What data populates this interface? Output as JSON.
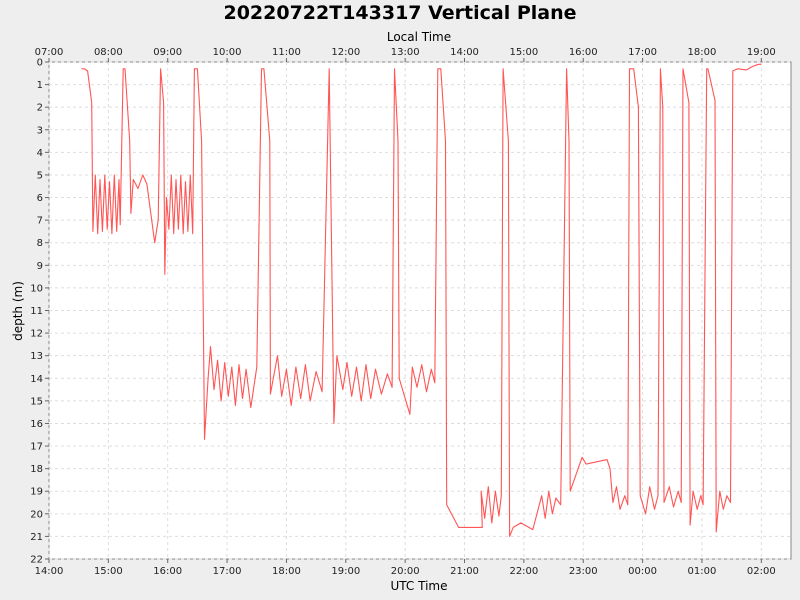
{
  "chart_data": {
    "type": "line",
    "title": "20220722T143317 Vertical Plane",
    "xlabel": "UTC Time",
    "x2label": "Local Time",
    "ylabel": "depth (m)",
    "x_range_hours": [
      14,
      26.5
    ],
    "ylim": [
      0,
      22
    ],
    "y_inverted": true,
    "grid": true,
    "line_color": "#ff5555",
    "x_ticks_utc": [
      "14:00",
      "15:00",
      "16:00",
      "17:00",
      "18:00",
      "19:00",
      "20:00",
      "21:00",
      "22:00",
      "23:00",
      "00:00",
      "01:00",
      "02:00"
    ],
    "x_ticks_local": [
      "07:00",
      "08:00",
      "09:00",
      "10:00",
      "11:00",
      "12:00",
      "13:00",
      "14:00",
      "15:00",
      "16:00",
      "17:00",
      "18:00",
      "19:00"
    ],
    "y_ticks": [
      0,
      1,
      2,
      3,
      4,
      5,
      6,
      7,
      8,
      9,
      10,
      11,
      12,
      13,
      14,
      15,
      16,
      17,
      18,
      19,
      20,
      21,
      22
    ],
    "series": [
      {
        "points": [
          [
            14.55,
            0.3
          ],
          [
            14.6,
            0.3
          ],
          [
            14.65,
            0.4
          ],
          [
            14.72,
            1.8
          ],
          [
            14.74,
            7.5
          ],
          [
            14.78,
            5
          ],
          [
            14.82,
            7.6
          ],
          [
            14.86,
            5.2
          ],
          [
            14.9,
            7.5
          ],
          [
            14.94,
            5
          ],
          [
            14.98,
            7.4
          ],
          [
            15.02,
            5.3
          ],
          [
            15.06,
            7.6
          ],
          [
            15.1,
            5
          ],
          [
            15.14,
            7.5
          ],
          [
            15.18,
            5.2
          ],
          [
            15.2,
            7.2
          ],
          [
            15.25,
            0.3
          ],
          [
            15.28,
            0.3
          ],
          [
            15.36,
            3.5
          ],
          [
            15.38,
            6.7
          ],
          [
            15.42,
            5.2
          ],
          [
            15.5,
            5.6
          ],
          [
            15.58,
            5
          ],
          [
            15.65,
            5.4
          ],
          [
            15.72,
            6.8
          ],
          [
            15.78,
            8
          ],
          [
            15.84,
            7
          ],
          [
            15.88,
            0.3
          ],
          [
            15.93,
            1.8
          ],
          [
            15.95,
            9.4
          ],
          [
            15.98,
            6
          ],
          [
            16.02,
            7.4
          ],
          [
            16.06,
            5
          ],
          [
            16.1,
            7.6
          ],
          [
            16.14,
            5.2
          ],
          [
            16.18,
            7.4
          ],
          [
            16.22,
            5
          ],
          [
            16.26,
            7.6
          ],
          [
            16.3,
            5.3
          ],
          [
            16.34,
            7.5
          ],
          [
            16.38,
            5
          ],
          [
            16.42,
            7.6
          ],
          [
            16.45,
            0.3
          ],
          [
            16.5,
            0.3
          ],
          [
            16.57,
            3.5
          ],
          [
            16.62,
            16.7
          ],
          [
            16.68,
            14
          ],
          [
            16.72,
            12.6
          ],
          [
            16.78,
            14.5
          ],
          [
            16.84,
            13.2
          ],
          [
            16.9,
            15
          ],
          [
            16.96,
            13.3
          ],
          [
            17.02,
            14.8
          ],
          [
            17.08,
            13.5
          ],
          [
            17.14,
            15.2
          ],
          [
            17.2,
            13.4
          ],
          [
            17.26,
            14.9
          ],
          [
            17.32,
            13.6
          ],
          [
            17.4,
            15.3
          ],
          [
            17.5,
            13.5
          ],
          [
            17.58,
            0.3
          ],
          [
            17.62,
            0.3
          ],
          [
            17.72,
            3.5
          ],
          [
            17.73,
            14.7
          ],
          [
            17.85,
            13
          ],
          [
            17.92,
            14.8
          ],
          [
            18,
            13.6
          ],
          [
            18.08,
            15.2
          ],
          [
            18.16,
            13.5
          ],
          [
            18.24,
            14.9
          ],
          [
            18.32,
            13.4
          ],
          [
            18.4,
            15
          ],
          [
            18.5,
            13.7
          ],
          [
            18.6,
            14.6
          ],
          [
            18.72,
            0.3
          ],
          [
            18.8,
            16
          ],
          [
            18.85,
            13
          ],
          [
            18.95,
            14.5
          ],
          [
            19.02,
            13.3
          ],
          [
            19.1,
            14.8
          ],
          [
            19.18,
            13.5
          ],
          [
            19.26,
            15
          ],
          [
            19.34,
            13.4
          ],
          [
            19.42,
            14.9
          ],
          [
            19.5,
            13.6
          ],
          [
            19.6,
            14.7
          ],
          [
            19.7,
            13.8
          ],
          [
            19.78,
            14.4
          ],
          [
            19.82,
            0.3
          ],
          [
            19.88,
            3.5
          ],
          [
            19.9,
            14
          ],
          [
            20.08,
            15.6
          ],
          [
            20.12,
            13.5
          ],
          [
            20.2,
            14.4
          ],
          [
            20.28,
            13.4
          ],
          [
            20.36,
            14.6
          ],
          [
            20.44,
            13.6
          ],
          [
            20.5,
            14.2
          ],
          [
            20.55,
            0.3
          ],
          [
            20.6,
            0.3
          ],
          [
            20.68,
            3.5
          ],
          [
            20.7,
            19.6
          ],
          [
            20.9,
            20.6
          ],
          [
            21.3,
            20.6
          ],
          [
            21.28,
            19
          ],
          [
            21.34,
            20.2
          ],
          [
            21.4,
            18.8
          ],
          [
            21.46,
            20.4
          ],
          [
            21.52,
            19
          ],
          [
            21.58,
            20.1
          ],
          [
            21.62,
            19.2
          ],
          [
            21.65,
            0.3
          ],
          [
            21.74,
            3.5
          ],
          [
            21.76,
            21
          ],
          [
            21.82,
            20.6
          ],
          [
            21.95,
            20.4
          ],
          [
            22.15,
            20.7
          ],
          [
            22.3,
            19.2
          ],
          [
            22.36,
            20.2
          ],
          [
            22.42,
            19
          ],
          [
            22.48,
            20
          ],
          [
            22.54,
            19.3
          ],
          [
            22.62,
            19.6
          ],
          [
            22.72,
            0.3
          ],
          [
            22.76,
            3.5
          ],
          [
            22.78,
            19
          ],
          [
            22.98,
            17.5
          ],
          [
            23.05,
            17.8
          ],
          [
            23.4,
            17.6
          ],
          [
            23.45,
            18
          ],
          [
            23.5,
            19.5
          ],
          [
            23.56,
            18.8
          ],
          [
            23.62,
            19.8
          ],
          [
            23.7,
            19.2
          ],
          [
            23.75,
            19.6
          ],
          [
            23.78,
            0.3
          ],
          [
            23.85,
            0.3
          ],
          [
            23.93,
            2
          ],
          [
            23.96,
            19.2
          ],
          [
            24.05,
            20
          ],
          [
            24.12,
            18.8
          ],
          [
            24.2,
            19.8
          ],
          [
            24.26,
            19.2
          ],
          [
            24.3,
            0.3
          ],
          [
            24.34,
            2
          ],
          [
            24.36,
            19.5
          ],
          [
            24.45,
            18.8
          ],
          [
            24.52,
            19.7
          ],
          [
            24.6,
            19
          ],
          [
            24.65,
            19.5
          ],
          [
            24.68,
            0.3
          ],
          [
            24.78,
            1.8
          ],
          [
            24.8,
            20.5
          ],
          [
            24.85,
            19
          ],
          [
            24.92,
            19.8
          ],
          [
            24.98,
            19.2
          ],
          [
            25.02,
            19.6
          ],
          [
            25.08,
            0.3
          ],
          [
            25.1,
            0.3
          ],
          [
            25.22,
            1.7
          ],
          [
            25.24,
            20.8
          ],
          [
            25.3,
            19
          ],
          [
            25.36,
            19.8
          ],
          [
            25.42,
            19.2
          ],
          [
            25.48,
            19.5
          ],
          [
            25.52,
            0.4
          ],
          [
            25.6,
            0.3
          ],
          [
            25.75,
            0.35
          ],
          [
            25.85,
            0.2
          ],
          [
            25.95,
            0.1
          ],
          [
            26,
            0.1
          ]
        ]
      }
    ]
  }
}
